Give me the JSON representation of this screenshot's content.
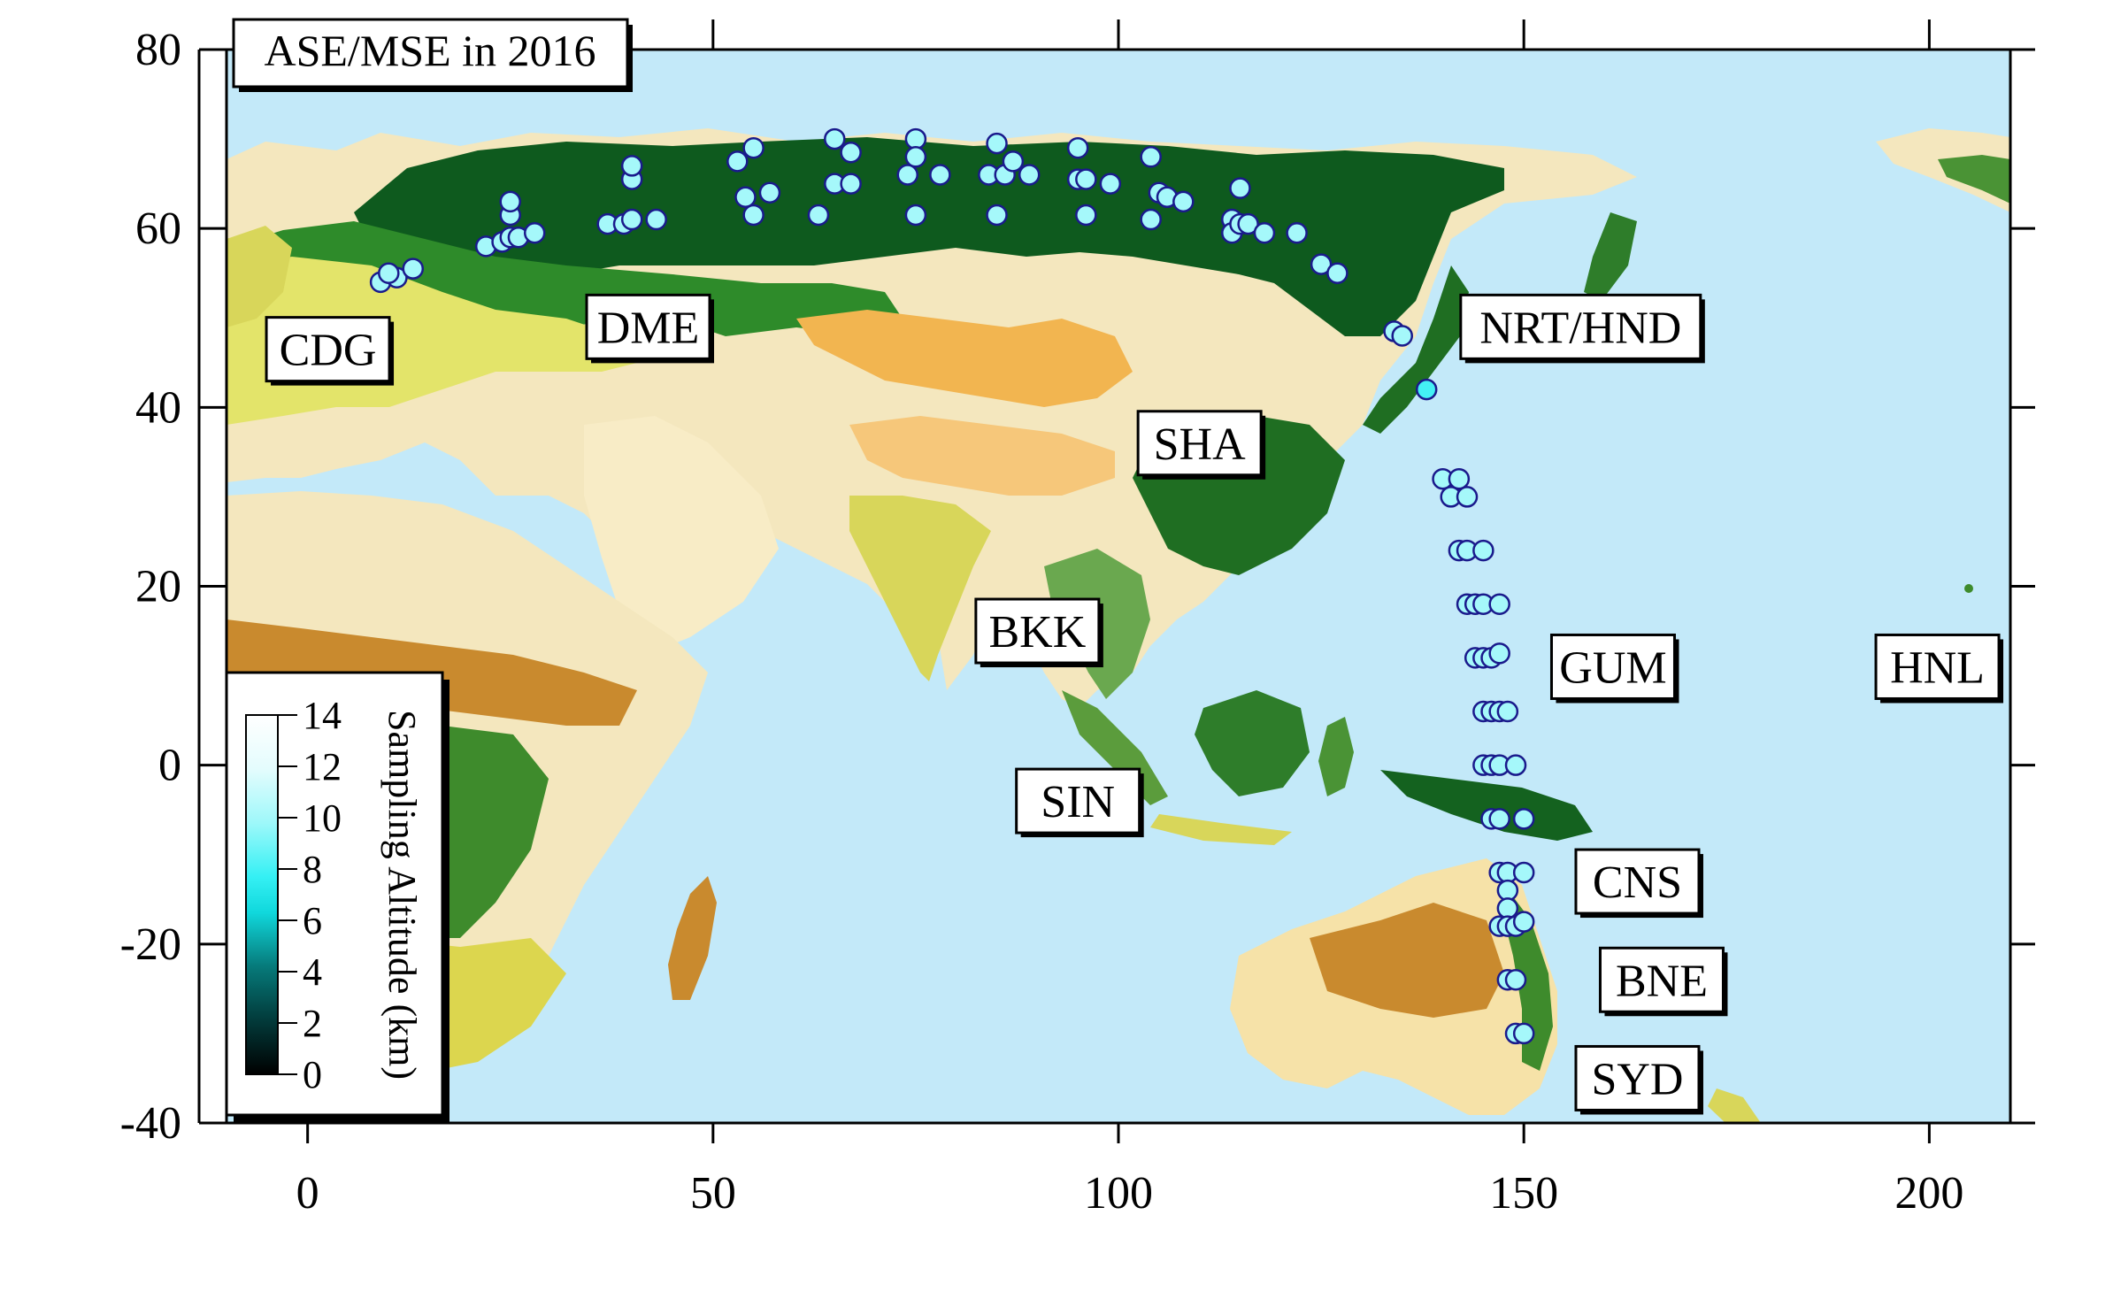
{
  "chart_data": {
    "type": "map",
    "title": "ASE/MSE in 2016",
    "xlim": [
      -10,
      210
    ],
    "ylim": [
      -40,
      80
    ],
    "x_ticks": [
      0,
      50,
      100,
      150,
      200
    ],
    "y_ticks": [
      80,
      60,
      40,
      20,
      0,
      -20,
      -40
    ],
    "x_tick_labels": [
      "0",
      "50",
      "100",
      "150",
      "200"
    ],
    "y_tick_labels": [
      "80",
      "60",
      "40",
      "20",
      "0",
      "-20",
      "-40"
    ],
    "colorbar": {
      "title": "Sampling Altitude (km)",
      "range": [
        0,
        14
      ],
      "ticks": [
        14,
        12,
        10,
        8,
        6,
        4,
        2,
        0
      ],
      "tick_labels": [
        "14",
        "12",
        "10",
        "8",
        "6",
        "4",
        "2",
        "0"
      ]
    },
    "airports": [
      {
        "code": "CDG",
        "lon": 2.5,
        "lat": 46.5
      },
      {
        "code": "DME",
        "lon": 42,
        "lat": 49
      },
      {
        "code": "NRT/HND",
        "lon": 157,
        "lat": 49
      },
      {
        "code": "SHA",
        "lon": 110,
        "lat": 36
      },
      {
        "code": "BKK",
        "lon": 90,
        "lat": 15
      },
      {
        "code": "SIN",
        "lon": 95,
        "lat": -4
      },
      {
        "code": "GUM",
        "lon": 161,
        "lat": 11
      },
      {
        "code": "HNL",
        "lon": 201,
        "lat": 11
      },
      {
        "code": "CNS",
        "lon": 164,
        "lat": -13
      },
      {
        "code": "BNE",
        "lon": 167,
        "lat": -24
      },
      {
        "code": "SYD",
        "lon": 164,
        "lat": -35
      }
    ],
    "samples": [
      [
        9,
        54,
        10
      ],
      [
        11,
        54.5,
        10
      ],
      [
        10,
        55,
        10
      ],
      [
        13,
        55.5,
        10
      ],
      [
        22,
        58,
        10
      ],
      [
        24,
        58.5,
        10
      ],
      [
        25,
        59,
        10
      ],
      [
        26,
        59,
        10
      ],
      [
        28,
        59.5,
        10
      ],
      [
        25,
        61.5,
        10
      ],
      [
        25,
        63,
        10
      ],
      [
        37,
        60.5,
        10
      ],
      [
        39,
        60.5,
        10
      ],
      [
        40,
        61,
        10
      ],
      [
        43,
        61,
        10
      ],
      [
        40,
        65.5,
        10
      ],
      [
        40,
        67,
        10
      ],
      [
        53,
        67.5,
        10
      ],
      [
        55,
        69,
        10
      ],
      [
        54,
        63.5,
        10
      ],
      [
        55,
        61.5,
        10
      ],
      [
        57,
        64,
        10
      ],
      [
        63,
        61.5,
        10
      ],
      [
        65,
        65,
        10
      ],
      [
        65,
        70,
        10
      ],
      [
        67,
        65,
        10
      ],
      [
        67,
        68.5,
        10
      ],
      [
        74,
        66,
        10
      ],
      [
        75,
        70,
        10
      ],
      [
        75,
        68,
        10
      ],
      [
        75,
        61.5,
        10
      ],
      [
        78,
        66,
        10
      ],
      [
        84,
        66,
        10
      ],
      [
        85,
        69.5,
        10
      ],
      [
        85,
        61.5,
        10
      ],
      [
        86,
        66,
        10
      ],
      [
        87,
        67.5,
        10
      ],
      [
        89,
        66,
        10
      ],
      [
        95,
        69,
        10
      ],
      [
        95,
        65.5,
        10
      ],
      [
        96,
        65.5,
        10
      ],
      [
        96,
        61.5,
        10
      ],
      [
        99,
        65,
        10
      ],
      [
        104,
        68,
        10
      ],
      [
        104,
        61,
        10
      ],
      [
        105,
        64,
        10
      ],
      [
        106,
        63.5,
        10
      ],
      [
        108,
        63,
        10
      ],
      [
        114,
        61,
        10
      ],
      [
        114,
        59.5,
        10
      ],
      [
        115,
        64.5,
        10
      ],
      [
        115,
        60.5,
        10
      ],
      [
        116,
        60.5,
        10
      ],
      [
        118,
        59.5,
        10
      ],
      [
        122,
        59.5,
        10
      ],
      [
        125,
        56,
        10
      ],
      [
        127,
        55,
        10
      ],
      [
        134,
        48.5,
        10
      ],
      [
        135,
        48,
        10
      ],
      [
        138,
        42,
        8
      ],
      [
        140,
        32,
        10
      ],
      [
        141,
        30,
        10
      ],
      [
        142,
        32,
        10
      ],
      [
        143,
        30,
        10
      ],
      [
        142,
        24,
        10
      ],
      [
        143,
        24,
        10
      ],
      [
        145,
        24,
        10
      ],
      [
        143,
        18,
        10
      ],
      [
        144,
        18,
        10
      ],
      [
        145,
        18,
        10
      ],
      [
        147,
        18,
        10
      ],
      [
        144,
        12,
        10
      ],
      [
        145,
        12,
        10
      ],
      [
        146,
        12,
        10
      ],
      [
        147,
        12.5,
        10
      ],
      [
        145,
        6,
        10
      ],
      [
        146,
        6,
        10
      ],
      [
        147,
        6,
        10
      ],
      [
        148,
        6,
        10
      ],
      [
        145,
        0,
        10
      ],
      [
        146,
        0,
        10
      ],
      [
        147,
        0,
        10
      ],
      [
        149,
        0,
        10
      ],
      [
        146,
        -6,
        10
      ],
      [
        147,
        -6,
        10
      ],
      [
        150,
        -6,
        10
      ],
      [
        147,
        -12,
        10
      ],
      [
        148,
        -12,
        10
      ],
      [
        150,
        -12,
        10
      ],
      [
        148,
        -14,
        10
      ],
      [
        148,
        -16,
        10
      ],
      [
        147,
        -18,
        10
      ],
      [
        148,
        -18,
        10
      ],
      [
        149,
        -18,
        10
      ],
      [
        150,
        -17.5,
        10
      ],
      [
        148,
        -24,
        10
      ],
      [
        149,
        -24,
        10
      ],
      [
        149,
        -30,
        10
      ],
      [
        150,
        -30,
        10
      ]
    ]
  }
}
